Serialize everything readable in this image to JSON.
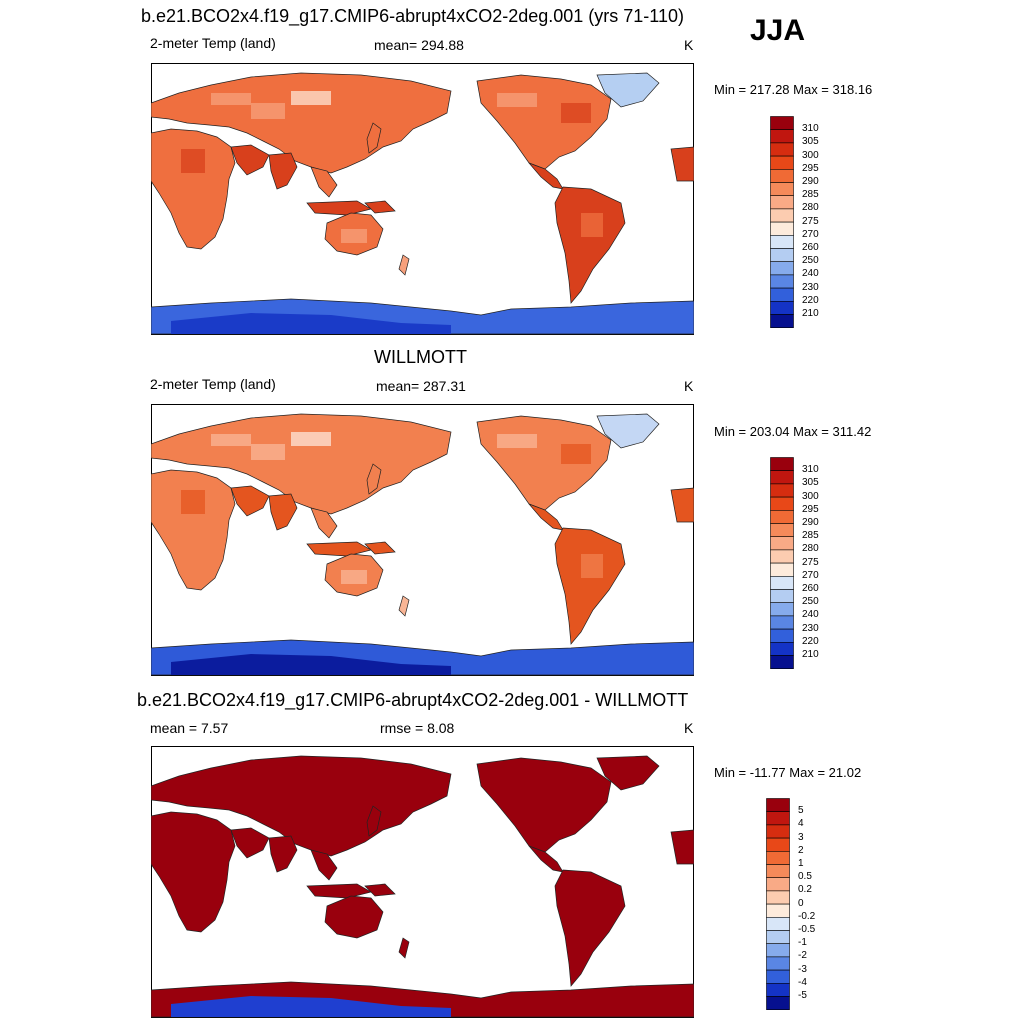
{
  "header": {
    "season": "JJA"
  },
  "panels": [
    {
      "title": "b.e21.BCO2x4.f19_g17.CMIP6-abrupt4xCO2-2deg.001 (yrs 71-110)",
      "variable": "2-meter Temp (land)",
      "stat": "mean= 294.88",
      "stat2": "",
      "units": "K",
      "minmax": "Min = 217.28 Max = 318.16",
      "colorbar": {
        "labels": [
          "310",
          "305",
          "300",
          "295",
          "290",
          "285",
          "280",
          "275",
          "270",
          "260",
          "250",
          "240",
          "230",
          "220",
          "210"
        ],
        "colors": [
          "#99000d",
          "#c0160f",
          "#d62d10",
          "#e84818",
          "#f06a35",
          "#f58a5a",
          "#f9aa86",
          "#fcccb0",
          "#fdebdc",
          "#d8e6f8",
          "#b4cdf2",
          "#86abec",
          "#5a86e4",
          "#3260db",
          "#1433c6",
          "#06108f"
        ]
      },
      "legend": {
        "warm_hot": "#d8401c",
        "warm": "#ef6f3f",
        "mild": "#f7a07c",
        "cool": "#fde3d3",
        "cold": "#b5cff2",
        "ice_light": "#3a66dd",
        "ice_dark": "#1a3bc8"
      }
    },
    {
      "title": "WILLMOTT",
      "variable": "2-meter Temp (land)",
      "stat": "mean= 287.31",
      "stat2": "",
      "units": "K",
      "minmax": "Min = 203.04 Max = 311.42",
      "colorbar": {
        "labels": [
          "310",
          "305",
          "300",
          "295",
          "290",
          "285",
          "280",
          "275",
          "270",
          "260",
          "250",
          "240",
          "230",
          "220",
          "210"
        ],
        "colors": [
          "#99000d",
          "#c0160f",
          "#d62d10",
          "#e84818",
          "#f06a35",
          "#f58a5a",
          "#f9aa86",
          "#fcccb0",
          "#fdebdc",
          "#d8e6f8",
          "#b4cdf2",
          "#86abec",
          "#5a86e4",
          "#3260db",
          "#1433c6",
          "#06108f"
        ]
      },
      "legend": {
        "warm_hot": "#e4551f",
        "warm": "#f2804f",
        "mild": "#f9b595",
        "cool": "#fde6d8",
        "cold": "#c4d7f4",
        "ice_light": "#2f5ad8",
        "ice_dark": "#0b1c9e"
      }
    },
    {
      "title": "b.e21.BCO2x4.f19_g17.CMIP6-abrupt4xCO2-2deg.001 - WILLMOTT",
      "variable": "",
      "stat": "mean =   7.57",
      "stat2": "rmse =   8.08",
      "units": "K",
      "minmax": "Min = -11.77 Max =  21.02",
      "colorbar": {
        "labels": [
          "5",
          "4",
          "3",
          "2",
          "1",
          "0.5",
          "0.2",
          "0",
          "-0.2",
          "-0.5",
          "-1",
          "-2",
          "-3",
          "-4",
          "-5"
        ],
        "colors": [
          "#99000d",
          "#c0160f",
          "#d62d10",
          "#e84818",
          "#f06a35",
          "#f58a5a",
          "#f9aa86",
          "#fcccb0",
          "#fdebdc",
          "#d8e6f8",
          "#b4cdf2",
          "#86abec",
          "#5a86e4",
          "#3260db",
          "#1433c6",
          "#06108f"
        ]
      },
      "legend": {
        "warm_hot": "#99000d",
        "warm": "#99000d",
        "mild": "#99000d",
        "cool": "#99000d",
        "cold": "#99000d",
        "ice_light": "#99000d",
        "ice_dark": "#1f3fd0"
      }
    }
  ]
}
